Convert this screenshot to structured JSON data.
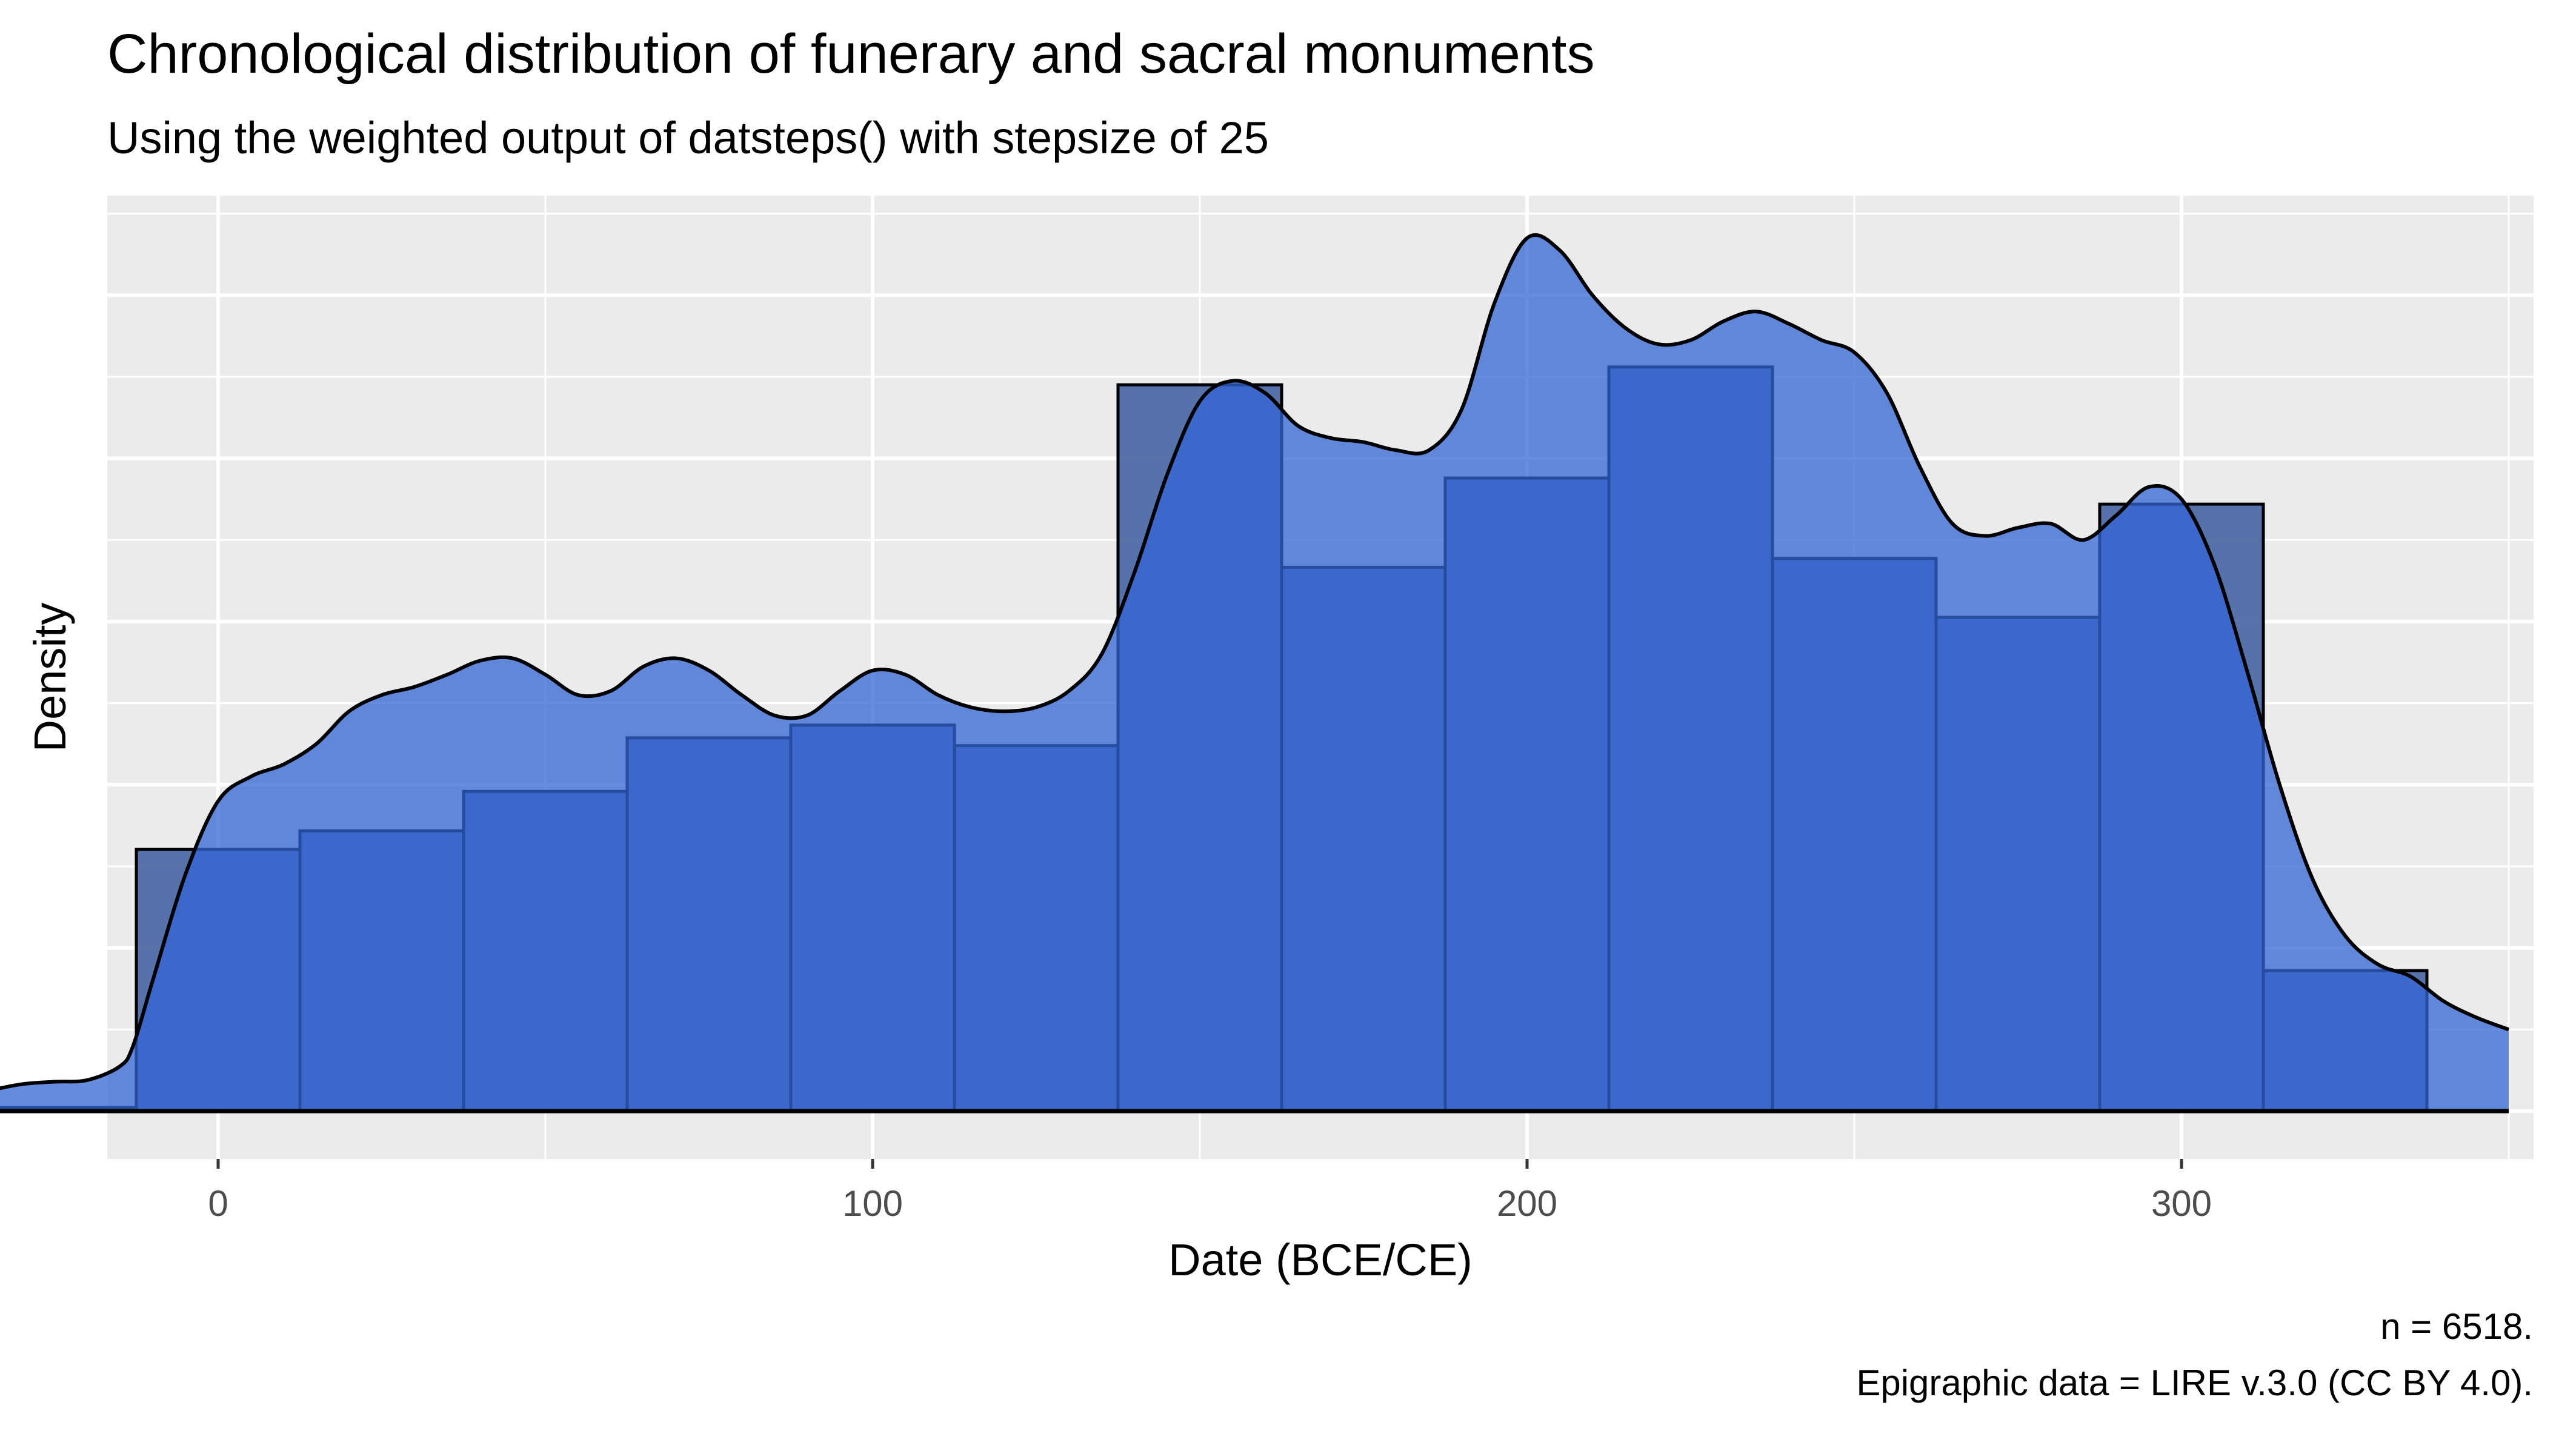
{
  "chart_data": {
    "type": "bar",
    "title": "Chronological distribution of funerary and sacral monuments",
    "subtitle": "Using the weighted output of datsteps() with stepsize of 25",
    "xlabel": "Date (BCE/CE)",
    "ylabel": "Density",
    "xlim": [
      -50,
      350
    ],
    "ylim": [
      0,
      1
    ],
    "x_ticks": [
      0,
      100,
      200,
      300
    ],
    "y_ticks_labeled": false,
    "grid": true,
    "caption": [
      "n = 6518.",
      "Epigraphic data = LIRE v.3.0 (CC BY 4.0)."
    ],
    "histogram": {
      "bin_width": 25,
      "bins": [
        {
          "x0": -37.5,
          "x1": -12.5,
          "value": 0.0044
        },
        {
          "x0": -12.5,
          "x1": 12.5,
          "value": 0.3207
        },
        {
          "x0": 12.5,
          "x1": 37.5,
          "value": 0.3435
        },
        {
          "x0": 37.5,
          "x1": 62.5,
          "value": 0.3918
        },
        {
          "x0": 62.5,
          "x1": 87.5,
          "value": 0.4575
        },
        {
          "x0": 87.5,
          "x1": 112.5,
          "value": 0.4731
        },
        {
          "x0": 112.5,
          "x1": 137.5,
          "value": 0.448
        },
        {
          "x0": 137.5,
          "x1": 162.5,
          "value": 0.8902
        },
        {
          "x0": 162.5,
          "x1": 187.5,
          "value": 0.6665
        },
        {
          "x0": 187.5,
          "x1": 212.5,
          "value": 0.7759
        },
        {
          "x0": 212.5,
          "x1": 237.5,
          "value": 0.912
        },
        {
          "x0": 237.5,
          "x1": 262.5,
          "value": 0.6773
        },
        {
          "x0": 262.5,
          "x1": 287.5,
          "value": 0.6052
        },
        {
          "x0": 287.5,
          "x1": 312.5,
          "value": 0.7439
        },
        {
          "x0": 312.5,
          "x1": 337.5,
          "value": 0.1722
        }
      ]
    },
    "density_curve": [
      [
        -50,
        0.0
      ],
      [
        -40,
        0.015
      ],
      [
        -35,
        0.025
      ],
      [
        -30,
        0.033
      ],
      [
        -25,
        0.036
      ],
      [
        -20,
        0.038
      ],
      [
        -15,
        0.055
      ],
      [
        -13,
        0.08
      ],
      [
        -10,
        0.16
      ],
      [
        -5,
        0.29
      ],
      [
        0,
        0.38
      ],
      [
        5,
        0.41
      ],
      [
        10,
        0.425
      ],
      [
        15,
        0.45
      ],
      [
        20,
        0.49
      ],
      [
        25,
        0.51
      ],
      [
        30,
        0.52
      ],
      [
        35,
        0.535
      ],
      [
        40,
        0.552
      ],
      [
        45,
        0.555
      ],
      [
        50,
        0.535
      ],
      [
        55,
        0.51
      ],
      [
        60,
        0.515
      ],
      [
        65,
        0.545
      ],
      [
        70,
        0.555
      ],
      [
        75,
        0.54
      ],
      [
        80,
        0.51
      ],
      [
        85,
        0.485
      ],
      [
        90,
        0.485
      ],
      [
        95,
        0.515
      ],
      [
        100,
        0.54
      ],
      [
        105,
        0.535
      ],
      [
        110,
        0.51
      ],
      [
        115,
        0.495
      ],
      [
        120,
        0.49
      ],
      [
        125,
        0.495
      ],
      [
        130,
        0.515
      ],
      [
        135,
        0.56
      ],
      [
        140,
        0.66
      ],
      [
        145,
        0.78
      ],
      [
        150,
        0.87
      ],
      [
        155,
        0.895
      ],
      [
        160,
        0.88
      ],
      [
        165,
        0.84
      ],
      [
        170,
        0.825
      ],
      [
        175,
        0.82
      ],
      [
        180,
        0.81
      ],
      [
        185,
        0.81
      ],
      [
        190,
        0.86
      ],
      [
        195,
        0.99
      ],
      [
        200,
        1.07
      ],
      [
        205,
        1.055
      ],
      [
        210,
        1.0
      ],
      [
        215,
        0.96
      ],
      [
        220,
        0.94
      ],
      [
        225,
        0.945
      ],
      [
        230,
        0.968
      ],
      [
        235,
        0.98
      ],
      [
        240,
        0.965
      ],
      [
        245,
        0.945
      ],
      [
        250,
        0.93
      ],
      [
        255,
        0.88
      ],
      [
        260,
        0.79
      ],
      [
        265,
        0.72
      ],
      [
        270,
        0.705
      ],
      [
        275,
        0.715
      ],
      [
        280,
        0.72
      ],
      [
        285,
        0.7
      ],
      [
        290,
        0.73
      ],
      [
        295,
        0.765
      ],
      [
        300,
        0.75
      ],
      [
        305,
        0.67
      ],
      [
        310,
        0.54
      ],
      [
        315,
        0.4
      ],
      [
        320,
        0.285
      ],
      [
        325,
        0.215
      ],
      [
        330,
        0.18
      ],
      [
        335,
        0.165
      ],
      [
        340,
        0.135
      ],
      [
        345,
        0.115
      ],
      [
        350,
        0.1
      ]
    ],
    "colors": {
      "panel_background": "#ebebeb",
      "gridline": "#ffffff",
      "histogram_fill": "#4f6aa6",
      "histogram_stroke": "#000000",
      "density_fill": "#3366d6",
      "density_stroke": "#000000",
      "baseline": "#000000"
    }
  }
}
